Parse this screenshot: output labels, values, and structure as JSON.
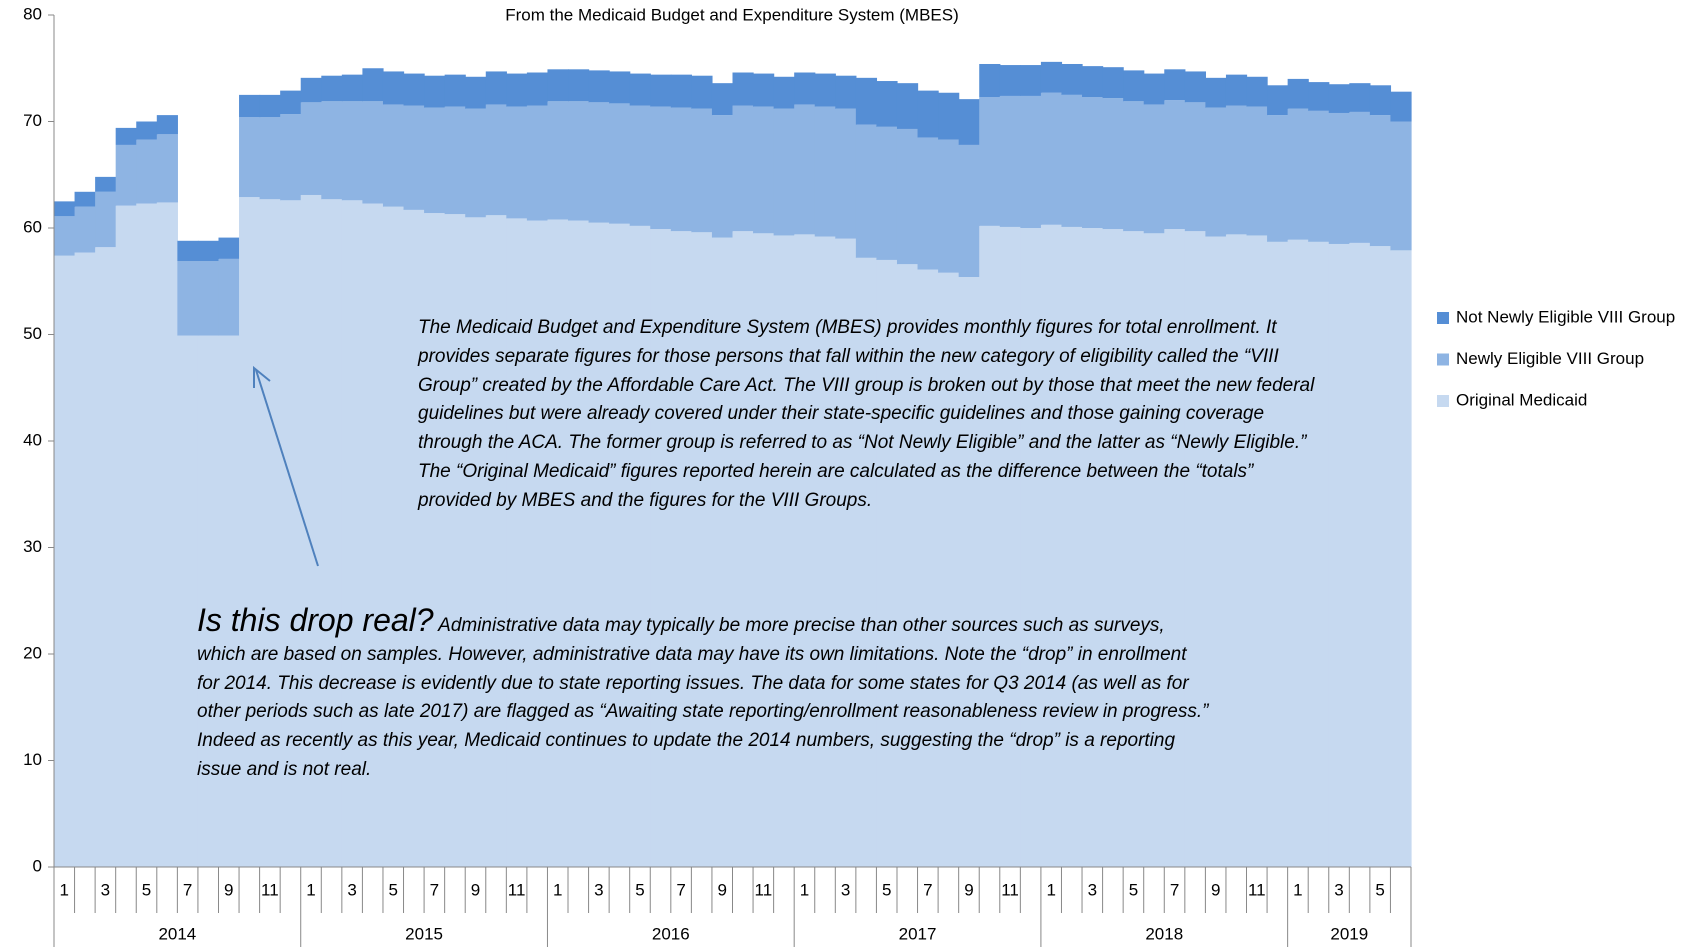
{
  "chart_data": {
    "type": "bar",
    "stacked": true,
    "title": "From the Medicaid Budget and Expenditure System (MBES)",
    "categories": [
      "1",
      null,
      "3",
      null,
      "5",
      null,
      "7",
      null,
      "9",
      null,
      "11",
      null,
      "1",
      null,
      "3",
      null,
      "5",
      null,
      "7",
      null,
      "9",
      null,
      "11",
      null,
      "1",
      null,
      "3",
      null,
      "5",
      null,
      "7",
      null,
      "9",
      null,
      "11",
      null,
      "1",
      null,
      "3",
      null,
      "5",
      null,
      "7",
      null,
      "9",
      null,
      "11",
      null,
      "1",
      null,
      "3",
      null,
      "5",
      null,
      "7",
      null,
      "9",
      null,
      "11",
      null,
      "1",
      null,
      "3",
      null,
      "5",
      null
    ],
    "years": [
      "2014",
      "2015",
      "2016",
      "2017",
      "2018",
      "2019"
    ],
    "series": [
      {
        "name": "Original Medicaid",
        "color": "#c6d9f0",
        "values": [
          57.4,
          57.7,
          58.2,
          62.1,
          62.3,
          62.4,
          49.9,
          49.9,
          49.9,
          62.9,
          62.7,
          62.6,
          63.1,
          62.7,
          62.6,
          62.3,
          62.0,
          61.7,
          61.4,
          61.3,
          61.0,
          61.2,
          60.9,
          60.7,
          60.8,
          60.7,
          60.5,
          60.4,
          60.2,
          59.9,
          59.7,
          59.6,
          59.1,
          59.7,
          59.5,
          59.3,
          59.4,
          59.2,
          59.0,
          57.2,
          57.0,
          56.6,
          56.1,
          55.8,
          55.4,
          60.2,
          60.1,
          60.0,
          60.3,
          60.1,
          60.0,
          59.9,
          59.7,
          59.5,
          59.9,
          59.7,
          59.2,
          59.4,
          59.3,
          58.7,
          58.9,
          58.7,
          58.5,
          58.6,
          58.3,
          57.9
        ]
      },
      {
        "name": "Newly Eligible VIII Group",
        "color": "#8eb4e3",
        "values": [
          3.7,
          4.3,
          5.2,
          5.7,
          6.0,
          6.4,
          7.0,
          7.0,
          7.2,
          7.5,
          7.7,
          8.1,
          8.7,
          9.2,
          9.3,
          9.6,
          9.6,
          9.8,
          9.9,
          10.1,
          10.2,
          10.4,
          10.5,
          10.8,
          11.1,
          11.2,
          11.3,
          11.3,
          11.3,
          11.5,
          11.6,
          11.6,
          11.5,
          11.8,
          11.9,
          11.9,
          12.2,
          12.2,
          12.2,
          12.5,
          12.5,
          12.7,
          12.4,
          12.5,
          12.4,
          12.1,
          12.3,
          12.4,
          12.4,
          12.4,
          12.3,
          12.3,
          12.2,
          12.1,
          12.1,
          12.1,
          12.1,
          12.1,
          12.1,
          11.9,
          12.3,
          12.3,
          12.3,
          12.3,
          12.3,
          12.1
        ]
      },
      {
        "name": "Not Newly Eligible VIII Group",
        "color": "#558ed5",
        "values": [
          1.4,
          1.4,
          1.4,
          1.6,
          1.7,
          1.8,
          1.9,
          1.9,
          2.0,
          2.1,
          2.1,
          2.2,
          2.3,
          2.4,
          2.5,
          3.1,
          3.1,
          3.0,
          3.0,
          3.0,
          3.0,
          3.1,
          3.1,
          3.1,
          3.0,
          3.0,
          3.0,
          3.0,
          3.0,
          3.0,
          3.1,
          3.1,
          3.0,
          3.1,
          3.1,
          3.0,
          3.0,
          3.1,
          3.1,
          4.4,
          4.3,
          4.3,
          4.4,
          4.4,
          4.3,
          3.1,
          2.9,
          2.9,
          2.9,
          2.9,
          2.9,
          2.9,
          2.9,
          2.9,
          2.9,
          2.9,
          2.8,
          2.9,
          2.8,
          2.8,
          2.8,
          2.7,
          2.7,
          2.7,
          2.8,
          2.8
        ]
      }
    ],
    "ylim": [
      0,
      80
    ],
    "yticks": [
      0,
      10,
      20,
      30,
      40,
      50,
      60,
      70,
      80
    ],
    "legend": "right",
    "annotations": [
      {
        "text": "The Medicaid Budget and Expenditure System (MBES) provides monthly figures for total enrollment.  It provides separate figures for those persons that fall within the new category of eligibility called the “VIII Group” created by the Affordable Care Act. The VIII group is broken out by those that meet the new federal guidelines but were already covered under their state-specific guidelines and those gaining coverage through the ACA. The former group is referred to as “Not Newly Eligible” and the latter as “Newly Eligible.” The “Original Medicaid” figures reported herein are calculated as the difference between the “totals” provided by MBES and the figures for the VIII Groups."
      },
      {
        "heading": "Is this drop real?",
        "text": "Administrative data may typically be more precise than other sources such as surveys, which are based on samples. However, administrative data may have its own limitations. Note the “drop” in enrollment for 2014. This decrease is evidently due to state reporting issues. The data for some states for Q3 2014 (as well as for other periods such as late 2017)  are flagged as “Awaiting state reporting/enrollment reasonableness review in progress.” Indeed as recently as this year, Medicaid continues to update the 2014 numbers, suggesting the “drop” is a reporting issue and is not real."
      }
    ]
  }
}
